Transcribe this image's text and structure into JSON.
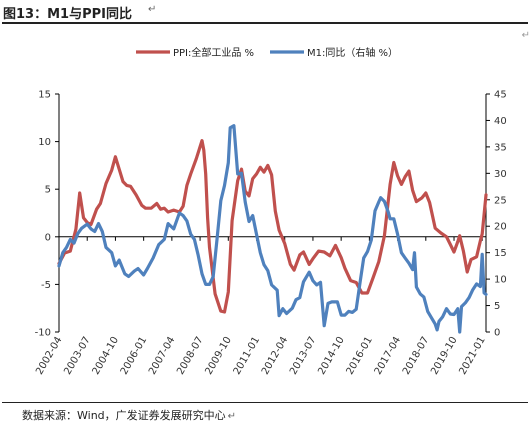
{
  "header": {
    "title": "图13：M1与PPI同比",
    "title_mark": "↵",
    "corner_mark": "↵"
  },
  "footer": {
    "source": "数据来源：Wind，广发证券发展研究中心",
    "source_mark": "↵"
  },
  "colors": {
    "ppi": "#c0504d",
    "m1": "#4f81bd",
    "axis": "#000000"
  },
  "chart_data": {
    "type": "line",
    "title": "M1与PPI同比",
    "legend_position": "top-center",
    "grid": false,
    "x_axis": {
      "range": [
        "2002-04",
        "2021-03"
      ],
      "tick_labels": [
        "2002-04",
        "2003-07",
        "2004-10",
        "2006-01",
        "2007-04",
        "2008-07",
        "2009-10",
        "2011-01",
        "2012-04",
        "2013-07",
        "2014-10",
        "2016-01",
        "2017-04",
        "2018-07",
        "2019-10",
        "2021-01"
      ]
    },
    "y_left": {
      "range": [
        -10,
        15
      ],
      "ticks": [
        -10,
        -5,
        0,
        5,
        10,
        15
      ],
      "label": ""
    },
    "y_right": {
      "range": [
        0,
        45
      ],
      "ticks": [
        0,
        5,
        10,
        15,
        20,
        25,
        30,
        35,
        40,
        45
      ],
      "label": ""
    },
    "series": [
      {
        "name": "PPI:全部工业品 %",
        "axis": "left",
        "color": "#c0504d",
        "points": [
          [
            "2002-04",
            -2.8
          ],
          [
            "2002-07",
            -1.7
          ],
          [
            "2002-10",
            -1.5
          ],
          [
            "2003-01",
            0.8
          ],
          [
            "2003-03",
            4.6
          ],
          [
            "2003-05",
            2.0
          ],
          [
            "2003-07",
            1.5
          ],
          [
            "2003-09",
            1.3
          ],
          [
            "2003-12",
            2.9
          ],
          [
            "2004-02",
            3.5
          ],
          [
            "2004-05",
            5.6
          ],
          [
            "2004-08",
            7.0
          ],
          [
            "2004-10",
            8.4
          ],
          [
            "2004-12",
            7.1
          ],
          [
            "2005-02",
            5.8
          ],
          [
            "2005-04",
            5.4
          ],
          [
            "2005-06",
            5.3
          ],
          [
            "2005-09",
            4.4
          ],
          [
            "2005-12",
            3.3
          ],
          [
            "2006-02",
            3.0
          ],
          [
            "2006-05",
            3.0
          ],
          [
            "2006-08",
            3.5
          ],
          [
            "2006-10",
            2.9
          ],
          [
            "2006-12",
            3.0
          ],
          [
            "2007-02",
            2.6
          ],
          [
            "2007-05",
            2.8
          ],
          [
            "2007-08",
            2.6
          ],
          [
            "2007-10",
            3.2
          ],
          [
            "2007-12",
            5.4
          ],
          [
            "2008-02",
            6.6
          ],
          [
            "2008-05",
            8.2
          ],
          [
            "2008-08",
            10.1
          ],
          [
            "2008-09",
            9.1
          ],
          [
            "2008-10",
            6.6
          ],
          [
            "2008-11",
            2.0
          ],
          [
            "2008-12",
            -1.1
          ],
          [
            "2009-03",
            -6.0
          ],
          [
            "2009-06",
            -7.8
          ],
          [
            "2009-08",
            -7.9
          ],
          [
            "2009-10",
            -5.8
          ],
          [
            "2009-12",
            1.7
          ],
          [
            "2010-03",
            5.9
          ],
          [
            "2010-05",
            7.1
          ],
          [
            "2010-07",
            4.8
          ],
          [
            "2010-09",
            4.3
          ],
          [
            "2010-11",
            6.1
          ],
          [
            "2011-01",
            6.6
          ],
          [
            "2011-03",
            7.3
          ],
          [
            "2011-05",
            6.8
          ],
          [
            "2011-07",
            7.5
          ],
          [
            "2011-09",
            6.5
          ],
          [
            "2011-11",
            2.7
          ],
          [
            "2012-01",
            0.7
          ],
          [
            "2012-04",
            -0.7
          ],
          [
            "2012-07",
            -2.9
          ],
          [
            "2012-09",
            -3.5
          ],
          [
            "2012-12",
            -1.9
          ],
          [
            "2013-02",
            -1.6
          ],
          [
            "2013-05",
            -2.9
          ],
          [
            "2013-07",
            -2.3
          ],
          [
            "2013-10",
            -1.5
          ],
          [
            "2014-01",
            -1.6
          ],
          [
            "2014-04",
            -2.0
          ],
          [
            "2014-07",
            -0.9
          ],
          [
            "2014-10",
            -2.2
          ],
          [
            "2014-12",
            -3.3
          ],
          [
            "2015-03",
            -4.6
          ],
          [
            "2015-06",
            -4.8
          ],
          [
            "2015-09",
            -5.9
          ],
          [
            "2015-12",
            -5.9
          ],
          [
            "2016-03",
            -4.3
          ],
          [
            "2016-06",
            -2.6
          ],
          [
            "2016-09",
            0.1
          ],
          [
            "2016-12",
            5.5
          ],
          [
            "2017-02",
            7.8
          ],
          [
            "2017-04",
            6.4
          ],
          [
            "2017-06",
            5.5
          ],
          [
            "2017-08",
            6.3
          ],
          [
            "2017-10",
            6.9
          ],
          [
            "2017-12",
            4.9
          ],
          [
            "2018-02",
            3.7
          ],
          [
            "2018-05",
            4.1
          ],
          [
            "2018-07",
            4.6
          ],
          [
            "2018-09",
            3.6
          ],
          [
            "2018-12",
            0.9
          ],
          [
            "2019-03",
            0.4
          ],
          [
            "2019-06",
            0.0
          ],
          [
            "2019-08",
            -0.8
          ],
          [
            "2019-10",
            -1.6
          ],
          [
            "2019-12",
            -0.5
          ],
          [
            "2020-01",
            0.1
          ],
          [
            "2020-03",
            -1.5
          ],
          [
            "2020-05",
            -3.7
          ],
          [
            "2020-07",
            -2.4
          ],
          [
            "2020-10",
            -2.1
          ],
          [
            "2020-12",
            -0.4
          ],
          [
            "2021-01",
            0.3
          ],
          [
            "2021-03",
            4.4
          ]
        ]
      },
      {
        "name": "M1:同比（右轴 %）",
        "axis": "right",
        "color": "#4f81bd",
        "points": [
          [
            "2002-04",
            12.5
          ],
          [
            "2002-06",
            15.0
          ],
          [
            "2002-08",
            16.0
          ],
          [
            "2002-10",
            17.5
          ],
          [
            "2002-12",
            16.8
          ],
          [
            "2003-02",
            18.6
          ],
          [
            "2003-04",
            19.6
          ],
          [
            "2003-07",
            20.4
          ],
          [
            "2003-09",
            19.5
          ],
          [
            "2003-11",
            19.0
          ],
          [
            "2004-01",
            20.5
          ],
          [
            "2004-03",
            19.0
          ],
          [
            "2004-05",
            16.0
          ],
          [
            "2004-08",
            15.0
          ],
          [
            "2004-10",
            12.5
          ],
          [
            "2004-12",
            13.6
          ],
          [
            "2005-03",
            11.0
          ],
          [
            "2005-05",
            10.5
          ],
          [
            "2005-08",
            11.5
          ],
          [
            "2005-10",
            12.0
          ],
          [
            "2006-01",
            10.8
          ],
          [
            "2006-03",
            12.0
          ],
          [
            "2006-06",
            14.0
          ],
          [
            "2006-09",
            16.5
          ],
          [
            "2006-12",
            17.5
          ],
          [
            "2007-02",
            20.5
          ],
          [
            "2007-05",
            19.5
          ],
          [
            "2007-08",
            22.5
          ],
          [
            "2007-10",
            22.0
          ],
          [
            "2007-12",
            21.0
          ],
          [
            "2008-02",
            18.5
          ],
          [
            "2008-04",
            17.5
          ],
          [
            "2008-06",
            14.5
          ],
          [
            "2008-08",
            11.0
          ],
          [
            "2008-10",
            9.0
          ],
          [
            "2008-12",
            9.0
          ],
          [
            "2009-02",
            10.5
          ],
          [
            "2009-04",
            17.5
          ],
          [
            "2009-06",
            24.8
          ],
          [
            "2009-08",
            27.7
          ],
          [
            "2009-10",
            32.0
          ],
          [
            "2009-11",
            38.6
          ],
          [
            "2010-01",
            39.0
          ],
          [
            "2010-03",
            29.9
          ],
          [
            "2010-05",
            30.0
          ],
          [
            "2010-07",
            24.6
          ],
          [
            "2010-09",
            20.9
          ],
          [
            "2010-11",
            22.0
          ],
          [
            "2011-01",
            18.5
          ],
          [
            "2011-03",
            15.0
          ],
          [
            "2011-05",
            12.7
          ],
          [
            "2011-07",
            11.6
          ],
          [
            "2011-09",
            8.9
          ],
          [
            "2011-12",
            7.9
          ],
          [
            "2012-01",
            3.1
          ],
          [
            "2012-03",
            4.4
          ],
          [
            "2012-05",
            3.5
          ],
          [
            "2012-08",
            4.5
          ],
          [
            "2012-10",
            6.1
          ],
          [
            "2012-12",
            6.5
          ],
          [
            "2013-02",
            9.5
          ],
          [
            "2013-05",
            11.3
          ],
          [
            "2013-07",
            9.7
          ],
          [
            "2013-09",
            8.9
          ],
          [
            "2013-11",
            9.4
          ],
          [
            "2014-01",
            1.2
          ],
          [
            "2014-03",
            5.4
          ],
          [
            "2014-05",
            5.7
          ],
          [
            "2014-08",
            5.7
          ],
          [
            "2014-10",
            3.2
          ],
          [
            "2014-12",
            3.2
          ],
          [
            "2015-02",
            3.9
          ],
          [
            "2015-04",
            3.7
          ],
          [
            "2015-06",
            4.3
          ],
          [
            "2015-08",
            9.3
          ],
          [
            "2015-10",
            14.0
          ],
          [
            "2015-12",
            15.2
          ],
          [
            "2016-02",
            17.4
          ],
          [
            "2016-04",
            22.9
          ],
          [
            "2016-06",
            24.6
          ],
          [
            "2016-07",
            25.4
          ],
          [
            "2016-09",
            24.7
          ],
          [
            "2016-11",
            22.7
          ],
          [
            "2016-12",
            21.4
          ],
          [
            "2017-02",
            21.4
          ],
          [
            "2017-04",
            18.5
          ],
          [
            "2017-06",
            15.0
          ],
          [
            "2017-08",
            14.0
          ],
          [
            "2017-10",
            13.0
          ],
          [
            "2017-12",
            11.8
          ],
          [
            "2018-01",
            15.0
          ],
          [
            "2018-02",
            8.5
          ],
          [
            "2018-04",
            7.2
          ],
          [
            "2018-06",
            6.6
          ],
          [
            "2018-08",
            3.9
          ],
          [
            "2018-10",
            2.7
          ],
          [
            "2018-12",
            1.5
          ],
          [
            "2019-01",
            0.4
          ],
          [
            "2019-02",
            2.0
          ],
          [
            "2019-04",
            2.9
          ],
          [
            "2019-06",
            4.4
          ],
          [
            "2019-08",
            3.4
          ],
          [
            "2019-10",
            3.3
          ],
          [
            "2019-12",
            4.4
          ],
          [
            "2020-01",
            0.0
          ],
          [
            "2020-02",
            4.8
          ],
          [
            "2020-04",
            5.5
          ],
          [
            "2020-06",
            6.5
          ],
          [
            "2020-08",
            8.0
          ],
          [
            "2020-10",
            9.1
          ],
          [
            "2020-12",
            8.6
          ],
          [
            "2021-01",
            14.7
          ],
          [
            "2021-02",
            7.4
          ],
          [
            "2021-03",
            7.1
          ]
        ]
      }
    ]
  }
}
